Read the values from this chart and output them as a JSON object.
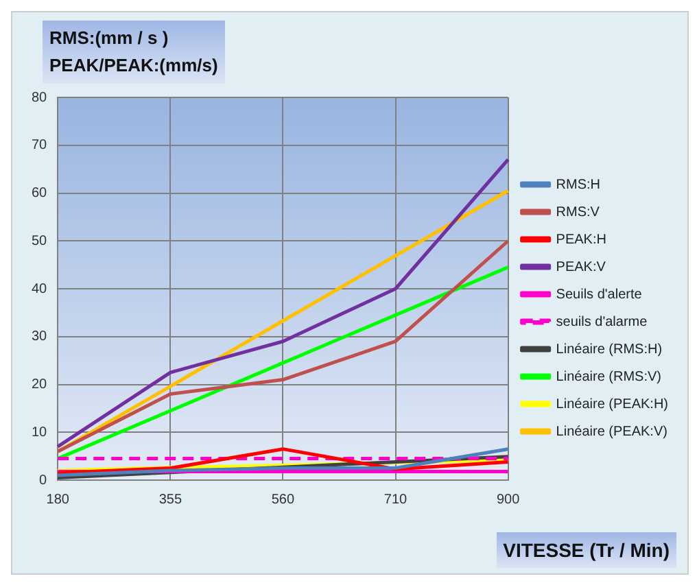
{
  "chart_data": {
    "type": "line",
    "ylabel": "RMS:(mm / s )\nPEAK/PEAK:(mm/s)",
    "xlabel": "VITESSE (Tr / Min)",
    "categories": [
      "180",
      "355",
      "560",
      "710",
      "900"
    ],
    "ylim": [
      0,
      80
    ],
    "yticks": [
      0,
      10,
      20,
      30,
      40,
      50,
      60,
      70,
      80
    ],
    "grid": true,
    "legend": "right",
    "marker": "none",
    "series": [
      {
        "name": "RMS:H",
        "color": "#4f81bd",
        "values": [
          1,
          2,
          2.5,
          2.5,
          6.5
        ]
      },
      {
        "name": "RMS:V",
        "color": "#c0504d",
        "values": [
          6,
          18,
          21,
          29,
          50
        ]
      },
      {
        "name": "PEAK:H",
        "color": "#ff0000",
        "values": [
          1.5,
          2.5,
          6.5,
          2.3,
          3.8
        ]
      },
      {
        "name": "PEAK:V",
        "color": "#7030a0",
        "values": [
          7,
          22.5,
          29,
          40,
          67
        ]
      },
      {
        "name": "Seuils d'alerte",
        "color": "#ff00cc",
        "values": [
          1.8,
          1.8,
          1.8,
          1.8,
          1.8
        ]
      },
      {
        "name": "seuils d'alarme",
        "color": "#ff00cc",
        "line_style": "dashed",
        "values": [
          4.5,
          4.5,
          4.5,
          4.5,
          4.5
        ]
      },
      {
        "name": "Linéaire (RMS:H)",
        "color": "#404040",
        "values": [
          0.5,
          1.6,
          2.7,
          3.8,
          4.9
        ]
      },
      {
        "name": "Linéaire (RMS:V)",
        "color": "#00ff00",
        "values": [
          4.5,
          14.5,
          24.5,
          34.5,
          44.5
        ]
      },
      {
        "name": "Linéaire (PEAK:H)",
        "color": "#ffff00",
        "values": [
          2,
          2.6,
          3.1,
          3.7,
          4.2
        ]
      },
      {
        "name": "Linéaire (PEAK:V)",
        "color": "#ffc000",
        "values": [
          6,
          19.6,
          33.3,
          46.9,
          60.5
        ]
      }
    ]
  }
}
